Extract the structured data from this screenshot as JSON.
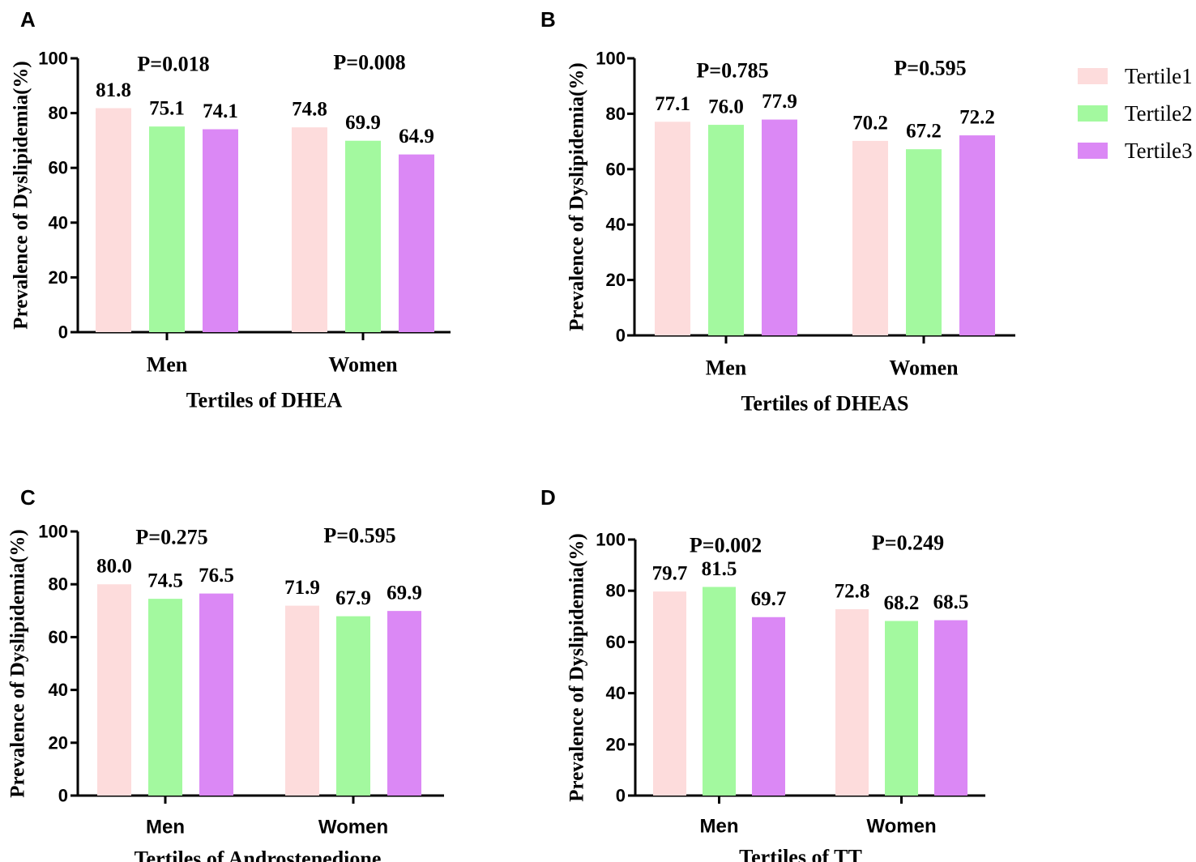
{
  "legend": [
    {
      "label": "Tertile1",
      "color": "#fddcdc"
    },
    {
      "label": "Tertile2",
      "color": "#a3f99f"
    },
    {
      "label": "Tertile3",
      "color": "#db88f5"
    }
  ],
  "chart_data": [
    {
      "panel": "A",
      "type": "bar",
      "title": "",
      "xlabel": "Tertiles of DHEA",
      "ylabel": "Prevalence of Dyslipidemia(%)",
      "ylim": [
        0,
        100
      ],
      "yticks": [
        "0",
        "20",
        "40",
        "60",
        "80",
        "100"
      ],
      "categories": [
        "Men",
        "Women"
      ],
      "series": [
        {
          "name": "Tertile1",
          "values": [
            81.8,
            74.8
          ],
          "labels": [
            "81.8",
            "74.8"
          ]
        },
        {
          "name": "Tertile2",
          "values": [
            75.1,
            69.9
          ],
          "labels": [
            "75.1",
            "69.9"
          ]
        },
        {
          "name": "Tertile3",
          "values": [
            74.1,
            64.9
          ],
          "labels": [
            "74.1",
            "64.9"
          ]
        }
      ],
      "pvalues": [
        "P=0.018",
        "P=0.008"
      ]
    },
    {
      "panel": "B",
      "type": "bar",
      "title": "",
      "xlabel": "Tertiles of DHEAS",
      "ylabel": "Prevalence of Dyslipidemia(%)",
      "ylim": [
        0,
        100
      ],
      "yticks": [
        "0",
        "20",
        "40",
        "60",
        "80",
        "100"
      ],
      "categories": [
        "Men",
        "Women"
      ],
      "series": [
        {
          "name": "Tertile1",
          "values": [
            77.1,
            70.2
          ],
          "labels": [
            "77.1",
            "70.2"
          ]
        },
        {
          "name": "Tertile2",
          "values": [
            76.0,
            67.2
          ],
          "labels": [
            "76.0",
            "67.2"
          ]
        },
        {
          "name": "Tertile3",
          "values": [
            77.9,
            72.2
          ],
          "labels": [
            "77.9",
            "72.2"
          ]
        }
      ],
      "pvalues": [
        "P=0.785",
        "P=0.595"
      ]
    },
    {
      "panel": "C",
      "type": "bar",
      "title": "",
      "xlabel": "Tertiles of Androstenedione",
      "ylabel": "Prevalence of Dyslipidemia(%)",
      "ylim": [
        0,
        100
      ],
      "yticks": [
        "0",
        "20",
        "40",
        "60",
        "80",
        "100"
      ],
      "categories": [
        "Men",
        "Women"
      ],
      "series": [
        {
          "name": "Tertile1",
          "values": [
            80.0,
            71.9
          ],
          "labels": [
            "80.0",
            "71.9"
          ]
        },
        {
          "name": "Tertile2",
          "values": [
            74.5,
            67.9
          ],
          "labels": [
            "74.5",
            "67.9"
          ]
        },
        {
          "name": "Tertile3",
          "values": [
            76.5,
            69.9
          ],
          "labels": [
            "76.5",
            "69.9"
          ]
        }
      ],
      "pvalues": [
        "P=0.275",
        "P=0.595"
      ]
    },
    {
      "panel": "D",
      "type": "bar",
      "title": "",
      "xlabel": "Tertiles of TT",
      "ylabel": "Prevalence of Dyslipidemia(%)",
      "ylim": [
        0,
        100
      ],
      "yticks": [
        "0",
        "20",
        "40",
        "60",
        "80",
        "100"
      ],
      "categories": [
        "Men",
        "Women"
      ],
      "series": [
        {
          "name": "Tertile1",
          "values": [
            79.7,
            72.8
          ],
          "labels": [
            "79.7",
            "72.8"
          ]
        },
        {
          "name": "Tertile2",
          "values": [
            81.5,
            68.2
          ],
          "labels": [
            "81.5",
            "68.2"
          ]
        },
        {
          "name": "Tertile3",
          "values": [
            69.7,
            68.5
          ],
          "labels": [
            "69.7",
            "68.5"
          ]
        }
      ],
      "pvalues": [
        "P=0.002",
        "P=0.249"
      ]
    }
  ]
}
